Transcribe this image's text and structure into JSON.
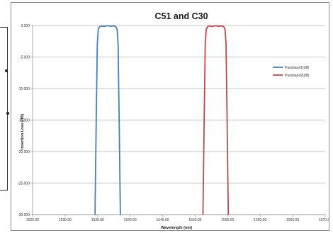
{
  "chart_data": {
    "type": "line",
    "title": "C51 and C30",
    "xlabel": "Wavelength (nm)",
    "ylabel": "Insertion Loss (dB)",
    "xlim": [
      1525,
      1570
    ],
    "ylim": [
      -30,
      0
    ],
    "x_ticks": [
      1525,
      1530,
      1535,
      1540,
      1545,
      1550,
      1555,
      1560,
      1565,
      1570
    ],
    "x_tick_labels": [
      "1525.00",
      "1530.00",
      "1535.00",
      "1540.00",
      "1545.00",
      "1550.00",
      "1555.00",
      "1560.00",
      "1565.00",
      "1570.00"
    ],
    "y_ticks": [
      0,
      -5,
      -10,
      -15,
      -20,
      -25,
      -30
    ],
    "y_tick_labels": [
      "0.000",
      "-5.000",
      "-10.000",
      "-15.000",
      "-20.000",
      "-25.000",
      "-30.000"
    ],
    "grid": "horizontal",
    "legend_position": "right",
    "series": [
      {
        "name": "Passband1(dB)",
        "color": "#4a7ebb",
        "x": [
          1534.6,
          1534.8,
          1534.95,
          1535.1,
          1535.3,
          1535.6,
          1536.0,
          1536.5,
          1537.0,
          1537.5,
          1537.8,
          1538.0,
          1538.15,
          1538.3,
          1538.5
        ],
        "y": [
          -30,
          -14,
          -3,
          -0.6,
          -0.2,
          -0.05,
          -0.15,
          -0.03,
          -0.12,
          -0.05,
          -0.2,
          -0.6,
          -3,
          -14,
          -30
        ]
      },
      {
        "name": "Passband2(dB)",
        "color": "#be4b48",
        "x": [
          1551.2,
          1551.4,
          1551.55,
          1551.7,
          1551.9,
          1552.2,
          1552.6,
          1553.1,
          1553.6,
          1554.1,
          1554.4,
          1554.6,
          1554.75,
          1554.9,
          1555.1
        ],
        "y": [
          -30,
          -14,
          -3,
          -0.6,
          -0.2,
          -0.05,
          -0.15,
          -0.03,
          -0.12,
          -0.05,
          -0.2,
          -0.6,
          -3,
          -14,
          -30
        ]
      }
    ]
  }
}
